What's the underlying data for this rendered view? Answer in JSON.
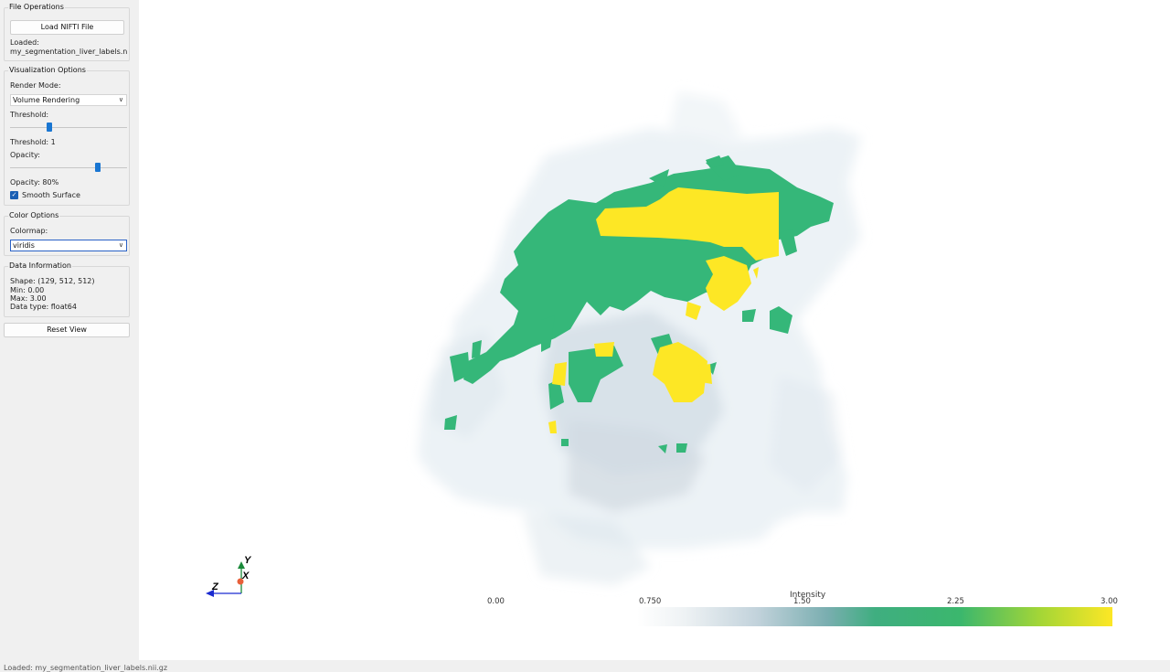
{
  "file_ops": {
    "title": "File Operations",
    "load_button": "Load NIFTI File",
    "loaded_label": "Loaded:",
    "loaded_file": "my_segmentation_liver_labels.nii.g"
  },
  "viz": {
    "title": "Visualization Options",
    "render_mode_label": "Render Mode:",
    "render_mode_value": "Volume Rendering",
    "threshold_label": "Threshold:",
    "threshold_readout": "Threshold: 1",
    "opacity_label": "Opacity:",
    "opacity_readout": "Opacity: 80%",
    "opacity_value": 0.8,
    "smooth_label": "Smooth Surface",
    "smooth_checked": true
  },
  "color": {
    "title": "Color Options",
    "colormap_label": "Colormap:",
    "colormap_value": "viridis"
  },
  "info": {
    "title": "Data Information",
    "shape": "Shape: (129, 512, 512)",
    "min": "Min: 0.00",
    "max": "Max: 3.00",
    "dtype": "Data type: float64"
  },
  "reset_button": "Reset View",
  "axes": {
    "y": "Y",
    "x": "X",
    "z": "Z"
  },
  "colorbar": {
    "title": "Intensity",
    "ticks": [
      "0.00",
      "0.750",
      "1.50",
      "2.25",
      "3.00"
    ],
    "colors": [
      "#ffffff",
      "#e8edf1",
      "#b8ccd6",
      "#6aa8a8",
      "#33b07a",
      "#3bb76d",
      "#8fd13a",
      "#fde725"
    ]
  },
  "status_text": "Loaded: my_segmentation_liver_labels.nii.gz"
}
